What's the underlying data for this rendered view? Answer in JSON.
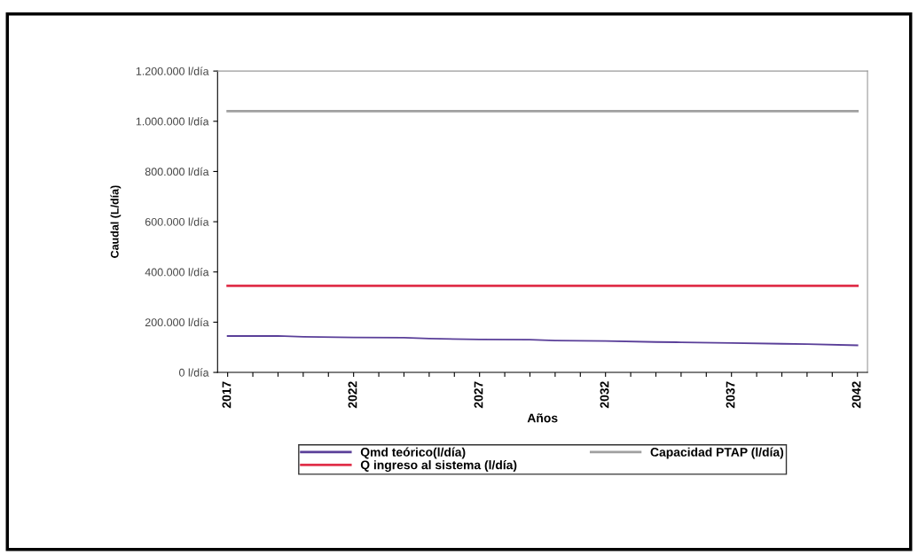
{
  "chart_data": {
    "type": "line",
    "xlabel": "Años",
    "ylabel": "Caudal (L/día)",
    "x": [
      2017,
      2019,
      2020,
      2022,
      2024,
      2025,
      2027,
      2029,
      2030,
      2032,
      2034,
      2035,
      2037,
      2039,
      2040,
      2042
    ],
    "series": [
      {
        "name": "Qmd teórico(l/día)",
        "color": "#5a3f99",
        "values": [
          145000,
          145000,
          142000,
          139000,
          138000,
          135000,
          131000,
          130000,
          127000,
          125000,
          121000,
          120000,
          117000,
          114000,
          113000,
          108000
        ]
      },
      {
        "name": "Q ingreso al sistema (l/día)",
        "color": "#e0304a",
        "values": [
          345000,
          345000,
          345000,
          345000,
          345000,
          345000,
          345000,
          345000,
          345000,
          345000,
          345000,
          345000,
          345000,
          345000,
          345000,
          345000
        ]
      },
      {
        "name": "Capacidad PTAP (l/día)",
        "color": "#a0a0a0",
        "values": [
          1040000,
          1040000,
          1040000,
          1040000,
          1040000,
          1040000,
          1040000,
          1040000,
          1040000,
          1040000,
          1040000,
          1040000,
          1040000,
          1040000,
          1040000,
          1040000
        ]
      }
    ],
    "xlim": [
      2016.6,
      2042.4
    ],
    "xticks": [
      2017,
      {
        "value": 2018,
        "label": null
      },
      {
        "value": 2019,
        "label": null
      },
      {
        "value": 2020,
        "label": null
      },
      {
        "value": 2021,
        "label": null
      },
      2022,
      {
        "value": 2023,
        "label": null
      },
      {
        "value": 2024,
        "label": null
      },
      {
        "value": 2025,
        "label": null
      },
      {
        "value": 2026,
        "label": null
      },
      2027,
      {
        "value": 2028,
        "label": null
      },
      {
        "value": 2029,
        "label": null
      },
      {
        "value": 2030,
        "label": null
      },
      {
        "value": 2031,
        "label": null
      },
      2032,
      {
        "value": 2033,
        "label": null
      },
      {
        "value": 2034,
        "label": null
      },
      {
        "value": 2035,
        "label": null
      },
      {
        "value": 2036,
        "label": null
      },
      2037,
      {
        "value": 2038,
        "label": null
      },
      {
        "value": 2039,
        "label": null
      },
      {
        "value": 2040,
        "label": null
      },
      {
        "value": 2041,
        "label": null
      },
      2042
    ],
    "ylim": [
      0,
      1200000
    ],
    "yticks": [
      {
        "value": 0,
        "label": "0 l/día"
      },
      {
        "value": 200000,
        "label": "200.000 l/día"
      },
      {
        "value": 400000,
        "label": "400.000 l/día"
      },
      {
        "value": 600000,
        "label": "600.000 l/día"
      },
      {
        "value": 800000,
        "label": "800.000 l/día"
      },
      {
        "value": 1000000,
        "label": "1.000.000 l/día"
      },
      {
        "value": 1200000,
        "label": "1.200.000 l/día"
      }
    ],
    "grid": false,
    "legend": "bottom",
    "marker": "none",
    "line_style": "solid"
  }
}
